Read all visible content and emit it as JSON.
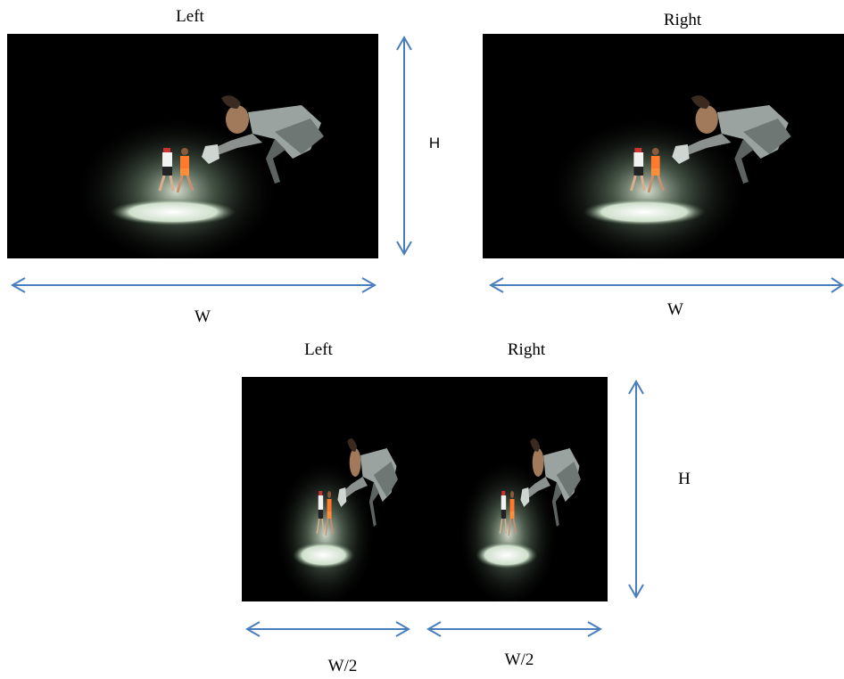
{
  "top": {
    "left_label": "Left",
    "right_label": "Right",
    "height_label": "H",
    "left_width_label": "W",
    "right_width_label": "W"
  },
  "bottom": {
    "left_label": "Left",
    "right_label": "Right",
    "height_label": "H",
    "left_width_label": "W/2",
    "right_width_label": "W/2"
  }
}
